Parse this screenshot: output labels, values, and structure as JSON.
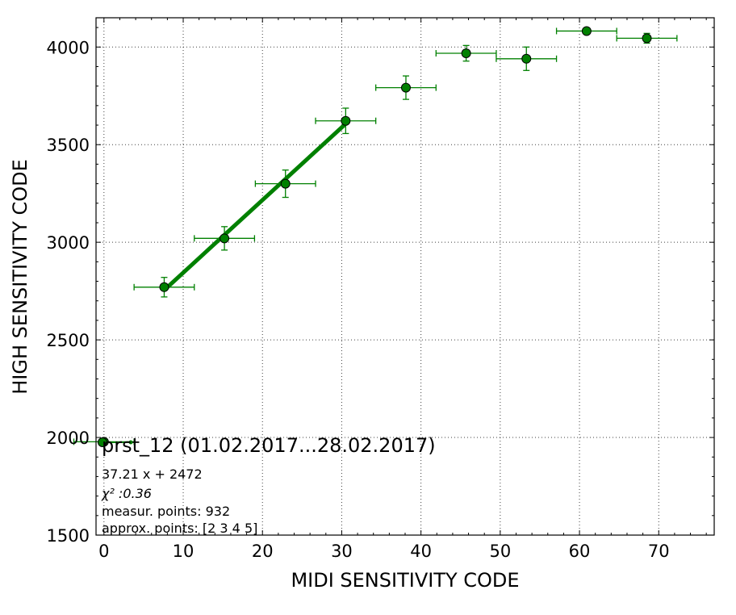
{
  "chart_data": {
    "type": "scatter",
    "xlabel": "MIDI SENSITIVITY CODE",
    "ylabel": "HIGH SENSITIVITY CODE",
    "xlim": [
      -1,
      77
    ],
    "ylim": [
      1500,
      4150
    ],
    "xticks": [
      0,
      10,
      20,
      30,
      40,
      50,
      60,
      70
    ],
    "yticks": [
      1500,
      2000,
      2500,
      3000,
      3500,
      4000
    ],
    "grid": true,
    "color": "#008000",
    "marker_color": "#008000",
    "series": [
      {
        "name": "prst_12 (01.02.2017...28.02.2017)",
        "points": [
          {
            "x": 0.0,
            "y": 1978,
            "xerr": 3.8,
            "yerr": 0
          },
          {
            "x": 7.6,
            "y": 2770,
            "xerr": 3.8,
            "yerr": 50
          },
          {
            "x": 15.2,
            "y": 3020,
            "xerr": 3.8,
            "yerr": 60
          },
          {
            "x": 22.9,
            "y": 3300,
            "xerr": 3.8,
            "yerr": 70
          },
          {
            "x": 30.5,
            "y": 3622,
            "xerr": 3.8,
            "yerr": 65
          },
          {
            "x": 38.1,
            "y": 3792,
            "xerr": 3.8,
            "yerr": 60
          },
          {
            "x": 45.7,
            "y": 3968,
            "xerr": 3.8,
            "yerr": 40
          },
          {
            "x": 53.3,
            "y": 3940,
            "xerr": 3.8,
            "yerr": 60
          },
          {
            "x": 60.9,
            "y": 4082,
            "xerr": 3.8,
            "yerr": 0
          },
          {
            "x": 68.5,
            "y": 4045,
            "xerr": 3.8,
            "yerr": 25
          }
        ]
      }
    ],
    "fit": {
      "slope": 37.21,
      "intercept": 2472,
      "x_range": [
        7.6,
        30.5
      ]
    },
    "legend": {
      "label": "prst_12 (01.02.2017...28.02.2017)",
      "placement": "lower-left"
    },
    "annotations": [
      "37.21 x + 2472",
      "χ² :0.36",
      "measur. points: 932",
      "approx. points: [2 3 4 5]"
    ]
  }
}
